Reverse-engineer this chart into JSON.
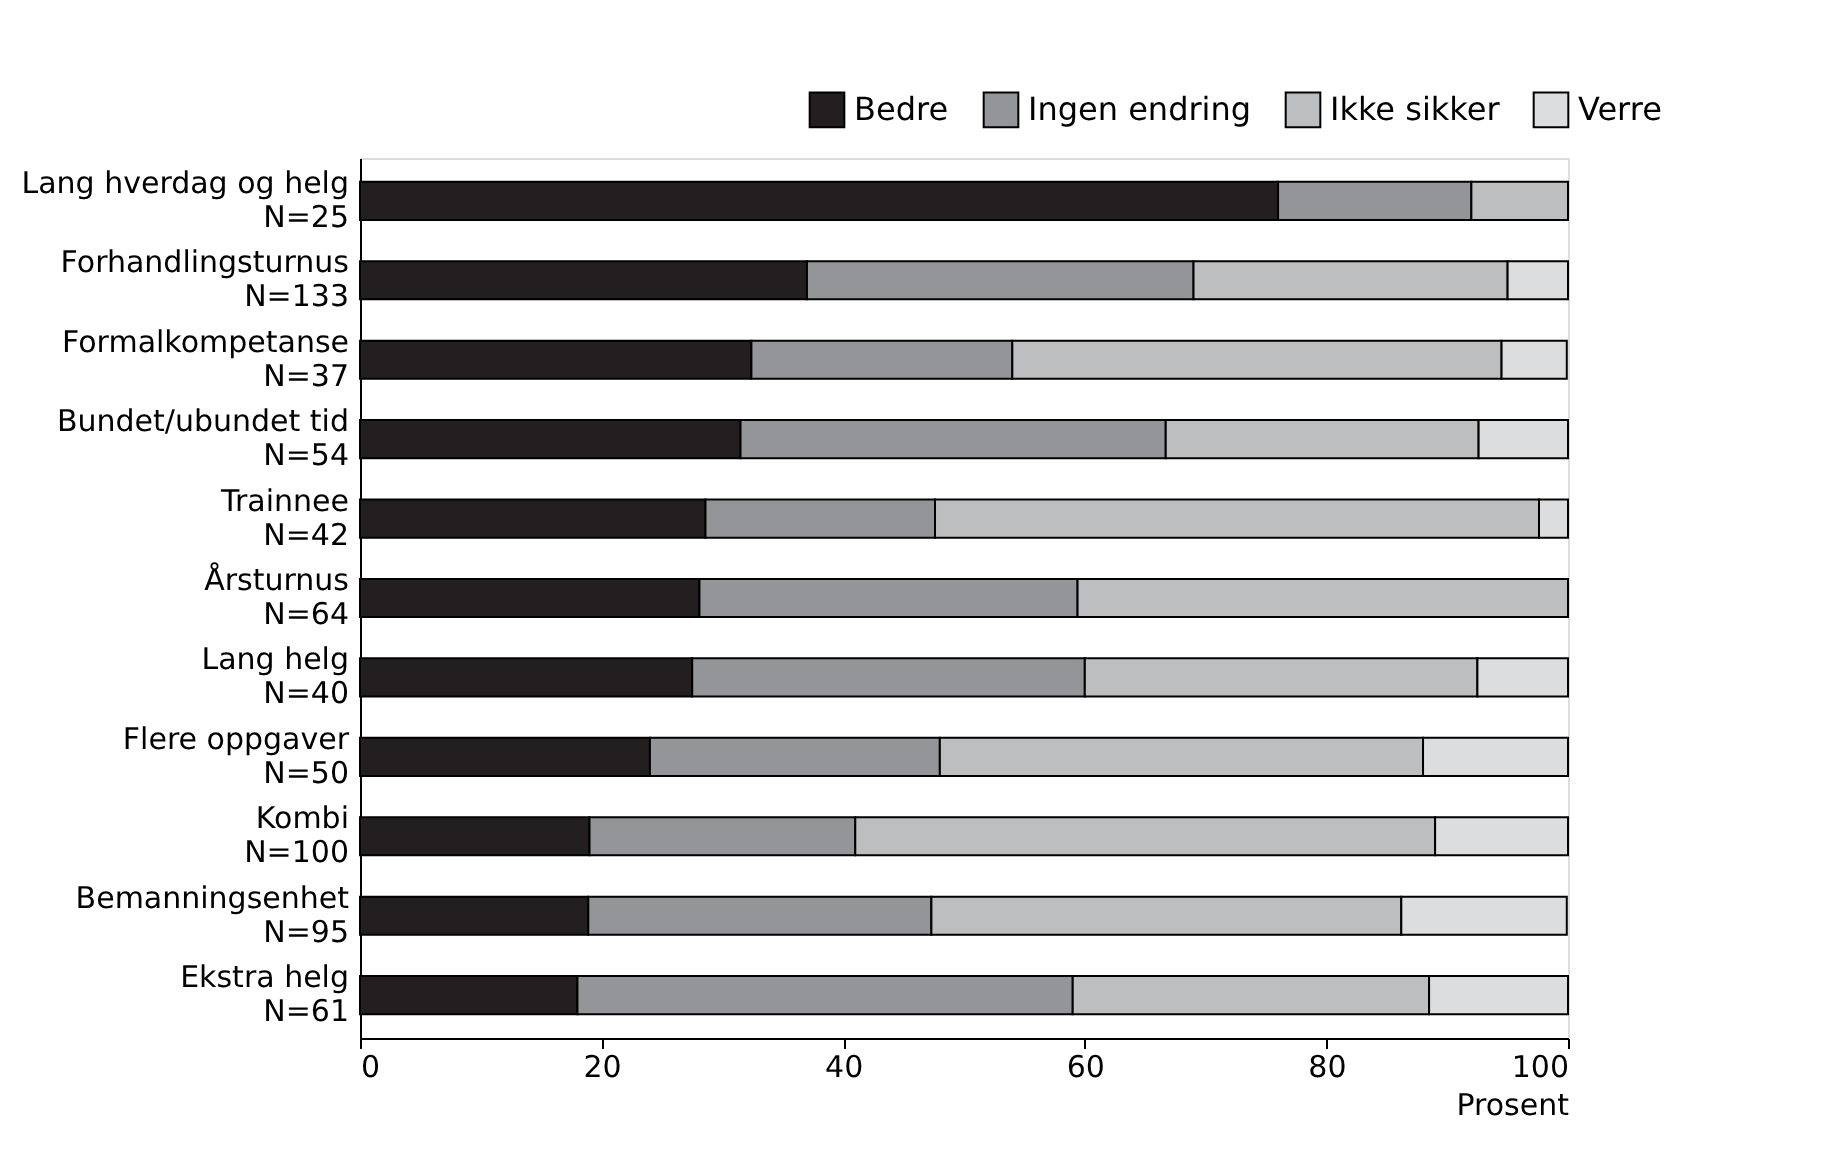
{
  "chart_data": {
    "type": "bar",
    "orientation": "horizontal",
    "stacked": true,
    "xlabel": "Prosent",
    "categories": [
      "Lang hverdag og helg\nN=25",
      "Forhandlingsturnus\nN=133",
      "Formalkompetanse\nN=37",
      "Bundet/ubundet tid\nN=54",
      "Trainnee\nN=42",
      "Årsturnus\nN=64",
      "Lang helg\nN=40",
      "Flere oppgaver\nN=50",
      "Kombi\nN=100",
      "Bemanningsenhet\nN=95",
      "Ekstra helg\nN=61"
    ],
    "series": [
      {
        "name": "Bedre",
        "color": "#231f20",
        "values": [
          76,
          37,
          32.4,
          31.5,
          28.6,
          28.1,
          27.5,
          24,
          19,
          18.9,
          18
        ]
      },
      {
        "name": "Ingen endring",
        "color": "#939598",
        "values": [
          16,
          32,
          21.6,
          35.2,
          19,
          31.3,
          32.5,
          24,
          22,
          28.4,
          41
        ]
      },
      {
        "name": "Ikke sikker",
        "color": "#bcbec0",
        "values": [
          8,
          26,
          40.5,
          25.9,
          50,
          40.6,
          32.5,
          40,
          48,
          38.9,
          29.5
        ]
      },
      {
        "name": "Verre",
        "color": "#dcddde",
        "values": [
          0,
          5,
          5.4,
          7.4,
          2.4,
          0,
          7.5,
          12,
          11,
          13.7,
          11.5
        ]
      }
    ],
    "xlim": [
      0,
      100
    ],
    "xticks": [
      0,
      20,
      40,
      60,
      80,
      100
    ],
    "grid": false,
    "legend": "top right"
  }
}
